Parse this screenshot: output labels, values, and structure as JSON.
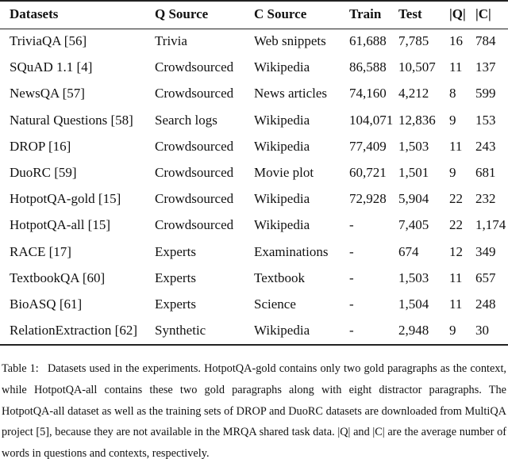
{
  "table": {
    "header": [
      "Datasets",
      "Q Source",
      "C Source",
      "Train",
      "Test",
      "|Q|",
      "|C|"
    ],
    "rows": [
      [
        "TriviaQA [56]",
        "Trivia",
        "Web snippets",
        "61,688",
        "7,785",
        "16",
        "784"
      ],
      [
        "SQuAD 1.1 [4]",
        "Crowdsourced",
        "Wikipedia",
        "86,588",
        "10,507",
        "11",
        "137"
      ],
      [
        "NewsQA [57]",
        "Crowdsourced",
        "News articles",
        "74,160",
        "4,212",
        "8",
        "599"
      ],
      [
        "Natural Questions [58]",
        "Search logs",
        "Wikipedia",
        "104,071",
        "12,836",
        "9",
        "153"
      ],
      [
        "DROP [16]",
        "Crowdsourced",
        "Wikipedia",
        "77,409",
        "1,503",
        "11",
        "243"
      ],
      [
        "DuoRC [59]",
        "Crowdsourced",
        "Movie plot",
        "60,721",
        "1,501",
        "9",
        "681"
      ],
      [
        "HotpotQA-gold [15]",
        "Crowdsourced",
        "Wikipedia",
        "72,928",
        "5,904",
        "22",
        "232"
      ],
      [
        "HotpotQA-all [15]",
        "Crowdsourced",
        "Wikipedia",
        "-",
        "7,405",
        "22",
        "1,174"
      ],
      [
        "RACE [17]",
        "Experts",
        "Examinations",
        "-",
        "674",
        "12",
        "349"
      ],
      [
        "TextbookQA [60]",
        "Experts",
        "Textbook",
        "-",
        "1,503",
        "11",
        "657"
      ],
      [
        "BioASQ [61]",
        "Experts",
        "Science",
        "-",
        "1,504",
        "11",
        "248"
      ],
      [
        "RelationExtraction [62]",
        "Synthetic",
        "Wikipedia",
        "-",
        "2,948",
        "9",
        "30"
      ]
    ]
  },
  "caption": "Table 1:  Datasets used in the experiments. HotpotQA-gold contains only two gold paragraphs as the context, while HotpotQA-all contains these two gold paragraphs along with eight distractor paragraphs. The HotpotQA-all dataset as well as the training sets of DROP and DuoRC datasets are downloaded from MultiQA project [5], because they are not available in the MRQA shared task data. |Q| and |C| are the average number of words in questions and contexts, respectively."
}
